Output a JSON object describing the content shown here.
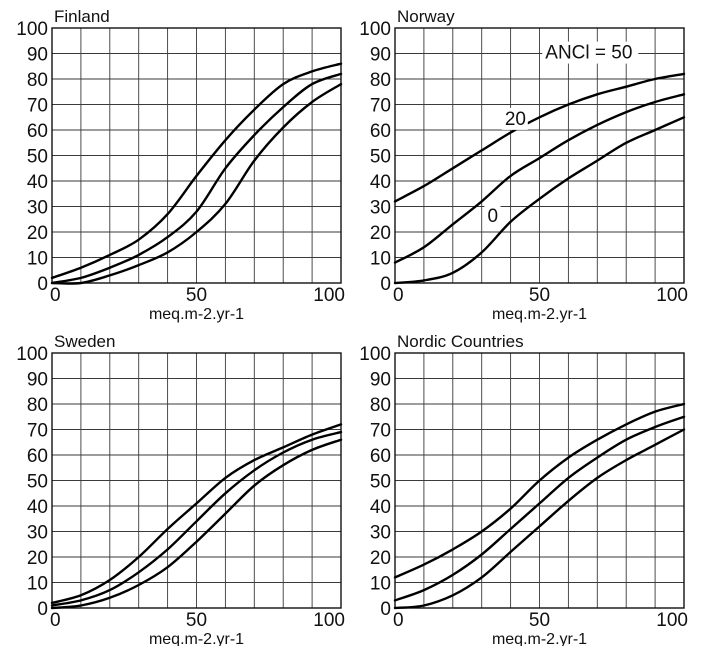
{
  "chart_data": [
    {
      "type": "line",
      "title": "Finland",
      "xlabel": "meq.m-2.yr-1",
      "xlim": [
        0,
        100
      ],
      "ylim": [
        0,
        100
      ],
      "xticks": [
        "0",
        "50",
        "100"
      ],
      "yticks": [
        "0",
        "10",
        "20",
        "30",
        "40",
        "50",
        "60",
        "70",
        "80",
        "90",
        "100"
      ],
      "grid": true,
      "series": [
        {
          "x": [
            0,
            10,
            20,
            30,
            40,
            50,
            60,
            70,
            80,
            90,
            100
          ],
          "y": [
            2,
            6,
            11,
            17,
            27,
            42,
            56,
            68,
            78,
            83,
            86
          ]
        },
        {
          "x": [
            0,
            10,
            20,
            30,
            40,
            50,
            60,
            70,
            80,
            90,
            100
          ],
          "y": [
            0,
            2,
            6,
            11,
            18,
            28,
            45,
            58,
            69,
            78,
            82
          ]
        },
        {
          "x": [
            0,
            10,
            20,
            30,
            40,
            50,
            60,
            70,
            80,
            90,
            100
          ],
          "y": [
            0,
            0,
            3,
            7,
            12,
            20,
            31,
            48,
            61,
            71,
            78
          ]
        }
      ]
    },
    {
      "type": "line",
      "title": "Norway",
      "xlabel": "meq.m-2.yr-1",
      "xlim": [
        0,
        100
      ],
      "ylim": [
        0,
        100
      ],
      "xticks": [
        "0",
        "50",
        "100"
      ],
      "yticks": [
        "0",
        "10",
        "20",
        "30",
        "40",
        "50",
        "60",
        "70",
        "80",
        "90",
        "100"
      ],
      "grid": true,
      "annotations": [
        "ANCl = 50",
        "20",
        "0"
      ],
      "series": [
        {
          "name": "50",
          "x": [
            0,
            10,
            20,
            30,
            40,
            50,
            60,
            70,
            80,
            90,
            100
          ],
          "y": [
            32,
            38,
            45,
            52,
            59,
            65,
            70,
            74,
            77,
            80,
            82
          ]
        },
        {
          "name": "20",
          "x": [
            0,
            10,
            20,
            30,
            40,
            50,
            60,
            70,
            80,
            90,
            100
          ],
          "y": [
            8,
            14,
            23,
            32,
            42,
            49,
            56,
            62,
            67,
            71,
            74
          ]
        },
        {
          "name": "0",
          "x": [
            0,
            10,
            20,
            30,
            40,
            50,
            60,
            70,
            80,
            90,
            100
          ],
          "y": [
            0,
            1,
            4,
            12,
            24,
            33,
            41,
            48,
            55,
            60,
            65
          ]
        }
      ]
    },
    {
      "type": "line",
      "title": "Sweden",
      "xlabel": "meq.m-2.yr-1",
      "xlim": [
        0,
        100
      ],
      "ylim": [
        0,
        100
      ],
      "xticks": [
        "0",
        "50",
        "100"
      ],
      "yticks": [
        "0",
        "10",
        "20",
        "30",
        "40",
        "50",
        "60",
        "70",
        "80",
        "90",
        "100"
      ],
      "grid": true,
      "series": [
        {
          "x": [
            0,
            10,
            20,
            30,
            40,
            50,
            60,
            70,
            80,
            90,
            100
          ],
          "y": [
            2,
            5,
            11,
            20,
            31,
            41,
            51,
            58,
            63,
            68,
            72
          ]
        },
        {
          "x": [
            0,
            10,
            20,
            30,
            40,
            50,
            60,
            70,
            80,
            90,
            100
          ],
          "y": [
            1,
            3,
            7,
            14,
            23,
            34,
            45,
            54,
            61,
            66,
            69
          ]
        },
        {
          "x": [
            0,
            10,
            20,
            30,
            40,
            50,
            60,
            70,
            80,
            90,
            100
          ],
          "y": [
            0,
            1,
            4,
            9,
            16,
            26,
            37,
            48,
            56,
            62,
            66
          ]
        }
      ]
    },
    {
      "type": "line",
      "title": "Nordic Countries",
      "xlabel": "meq.m-2.yr-1",
      "xlim": [
        0,
        100
      ],
      "ylim": [
        0,
        100
      ],
      "xticks": [
        "0",
        "50",
        "100"
      ],
      "yticks": [
        "0",
        "10",
        "20",
        "30",
        "40",
        "50",
        "60",
        "70",
        "80",
        "90",
        "100"
      ],
      "grid": true,
      "series": [
        {
          "x": [
            0,
            10,
            20,
            30,
            40,
            50,
            60,
            70,
            80,
            90,
            100
          ],
          "y": [
            12,
            17,
            23,
            30,
            39,
            50,
            59,
            66,
            72,
            77,
            80
          ]
        },
        {
          "x": [
            0,
            10,
            20,
            30,
            40,
            50,
            60,
            70,
            80,
            90,
            100
          ],
          "y": [
            3,
            7,
            13,
            21,
            31,
            41,
            51,
            59,
            66,
            71,
            75
          ]
        },
        {
          "x": [
            0,
            10,
            20,
            30,
            40,
            50,
            60,
            70,
            80,
            90,
            100
          ],
          "y": [
            0,
            1,
            5,
            12,
            22,
            32,
            42,
            51,
            58,
            64,
            70
          ]
        }
      ]
    }
  ]
}
